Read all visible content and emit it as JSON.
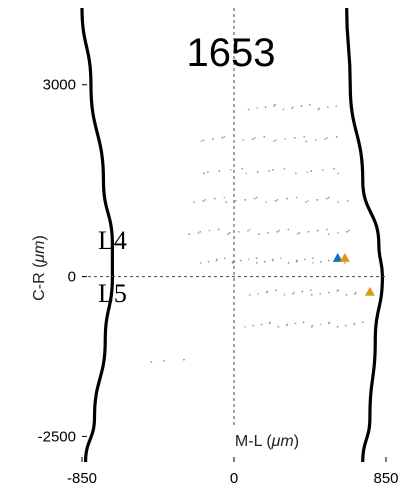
{
  "chart_data": {
    "type": "scatter",
    "title": "1653",
    "xlabel_prefix": "M-L (",
    "xlabel_unit": "μm",
    "xlabel_suffix": ")",
    "ylabel_prefix": "C-R (",
    "ylabel_unit": "μm",
    "ylabel_suffix": ")",
    "xlim": [
      -850,
      850
    ],
    "ylim": [
      -2900,
      4200
    ],
    "x_ticks": [
      -850,
      0,
      850
    ],
    "x_tick_labels": [
      "-850",
      "0",
      "850"
    ],
    "y_ticks": [
      -2500,
      0,
      3000
    ],
    "y_tick_labels": [
      "-2500",
      "0",
      "3000"
    ],
    "grid": false,
    "reference_lines": {
      "x": 0,
      "y": 0,
      "style": "dashed"
    },
    "layer_labels": [
      {
        "text": "L4",
        "x": -720,
        "y": 450
      },
      {
        "text": "L5",
        "x": -720,
        "y": -450
      }
    ],
    "boundaries": {
      "left": [
        [
          -850,
          4200
        ],
        [
          -800,
          3000
        ],
        [
          -730,
          1500
        ],
        [
          -680,
          500
        ],
        [
          -680,
          0
        ],
        [
          -720,
          -1000
        ],
        [
          -780,
          -2200
        ],
        [
          -830,
          -2900
        ]
      ],
      "right": [
        [
          630,
          4200
        ],
        [
          650,
          3000
        ],
        [
          720,
          1500
        ],
        [
          810,
          500
        ],
        [
          830,
          0
        ],
        [
          790,
          -1000
        ],
        [
          760,
          -2200
        ],
        [
          720,
          -2900
        ]
      ]
    },
    "dot_rows": [
      {
        "y": 2650,
        "x_start": 100,
        "x_end": 560,
        "count": 14
      },
      {
        "y": 2150,
        "x_start": -200,
        "x_end": 580,
        "count": 20
      },
      {
        "y": 1650,
        "x_start": -180,
        "x_end": 600,
        "count": 16
      },
      {
        "y": 1200,
        "x_start": -230,
        "x_end": 630,
        "count": 22
      },
      {
        "y": 700,
        "x_start": -250,
        "x_end": 660,
        "count": 24
      },
      {
        "y": 250,
        "x_start": -180,
        "x_end": 620,
        "count": 26
      },
      {
        "y": -250,
        "x_start": 100,
        "x_end": 700,
        "count": 18
      },
      {
        "y": -750,
        "x_start": 80,
        "x_end": 720,
        "count": 20
      },
      {
        "y": -1300,
        "x_start": -480,
        "x_end": -280,
        "count": 3
      }
    ],
    "series": [
      {
        "marker": "triangle",
        "color": "#1f6fb5",
        "points": [
          [
            580,
            300
          ]
        ]
      },
      {
        "marker": "triangle",
        "color": "#d99a1a",
        "points": [
          [
            620,
            300
          ],
          [
            760,
            -230
          ]
        ]
      }
    ]
  }
}
